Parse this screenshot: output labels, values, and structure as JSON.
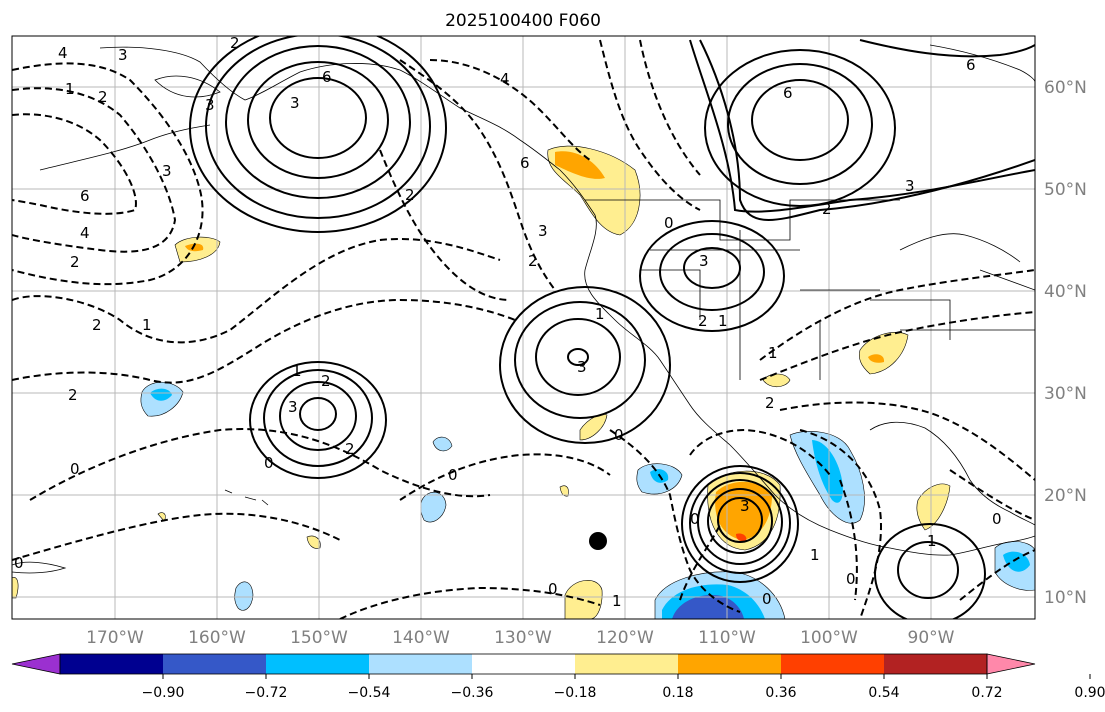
{
  "title": "2025100400 F060",
  "lon_labels": [
    "170°W",
    "160°W",
    "150°W",
    "140°W",
    "130°W",
    "120°W",
    "110°W",
    "100°W",
    "90°W"
  ],
  "lat_labels": [
    "60°N",
    "50°N",
    "40°N",
    "30°N",
    "20°N",
    "10°N"
  ],
  "colorbar": {
    "tick_labels": [
      "−0.90",
      "−0.72",
      "−0.54",
      "−0.36",
      "−0.18",
      "0.18",
      "0.36",
      "0.54",
      "0.72",
      "0.90"
    ],
    "colors": [
      "#9b30d0",
      "#000090",
      "#3558c8",
      "#00bfff",
      "#ade0ff",
      "#ffffff",
      "#ffee90",
      "#ffa500",
      "#ff4000",
      "#b22222",
      "#ff88aa"
    ]
  },
  "contour_labels": {
    "positive": [
      "6",
      "3",
      "3",
      "2",
      "6",
      "3",
      "2",
      "3",
      "3",
      "2",
      "2",
      "3",
      "6",
      "3",
      "1",
      "1",
      "1",
      "2",
      "1"
    ],
    "negative": [
      "4",
      "3",
      "1",
      "2",
      "6",
      "4",
      "3",
      "1",
      "2",
      "3",
      "2",
      "2",
      "6",
      "4",
      "2",
      "2",
      "1",
      "2",
      "0",
      "0",
      "0",
      "0",
      "0",
      "0",
      "0",
      "1",
      "0",
      "0",
      "0",
      "1",
      "0"
    ]
  }
}
